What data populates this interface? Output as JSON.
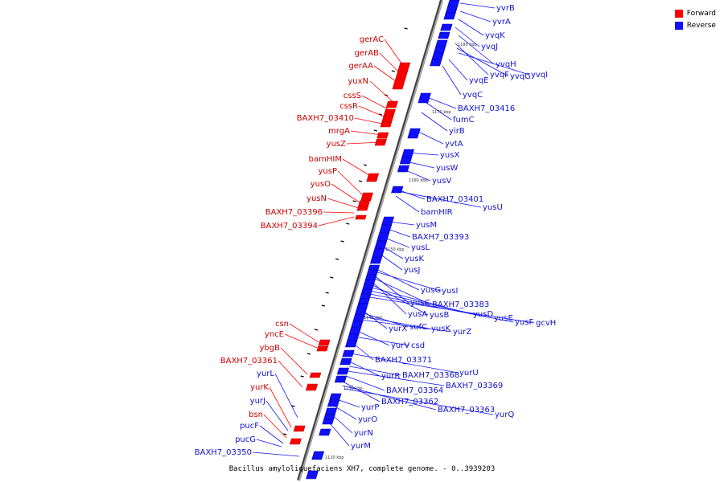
{
  "caption": "Bacillus amyloliquefaciens XH7, complete genome. - 0..3939203",
  "legend": [
    {
      "label": "Forward",
      "color": "#ff0000"
    },
    {
      "label": "Reverse",
      "color": "#1010ff"
    }
  ],
  "colors": {
    "forward": "#ff0000",
    "reverse": "#1010ff",
    "backbone": "#8a8a8a"
  },
  "kbp_marks": [
    "1180 kbp",
    "1170 kbp",
    "1160 kbp",
    "1150 kbp",
    "1140 kbp",
    "1130 kbp",
    "1120 kbp"
  ],
  "forward_genes": [
    "gerAC",
    "gerAB",
    "gerAA",
    "yuxN",
    "cssS",
    "cssR",
    "BAXH7_03410",
    "mrgA",
    "yusZ",
    "bamHIM",
    "yusP",
    "yusO",
    "yusN",
    "BAXH7_03396",
    "BAXH7_03394",
    "csn",
    "yncE",
    "ybgB",
    "BAXH7_03361",
    "yurL",
    "yurK",
    "yurJ",
    "bsn",
    "pucF",
    "pucG",
    "BAXH7_03350"
  ],
  "reverse_genes": [
    "yvrB",
    "yvrA",
    "yvqK",
    "yvqJ",
    "yvqH",
    "yvqF",
    "yvqG",
    "yvqI",
    "yvqE",
    "yvqC",
    "BAXH7_03416",
    "fumC",
    "yirB",
    "yvtA",
    "yusX",
    "yusW",
    "yusV",
    "BAXH7_03401",
    "yusU",
    "bamHIR",
    "yusM",
    "BAXH7_03393",
    "yusL",
    "yusK",
    "yusJ",
    "yusG",
    "yusI",
    "yusC",
    "BAXH7_03383",
    "yusA",
    "yusB",
    "yusD",
    "yusE",
    "yusF",
    "gcvH",
    "yurX",
    "sufC",
    "yusK",
    "yurZ",
    "yurV",
    "csd",
    "BAXH7_03371",
    "yurU",
    "yurR",
    "BAXH7_03368",
    "BAXH7_03369",
    "BAXH7_03364",
    "BAXH7_03362",
    "BAXH7_03363",
    "yurQ",
    "yurP",
    "yurO",
    "yurN",
    "yurM"
  ]
}
